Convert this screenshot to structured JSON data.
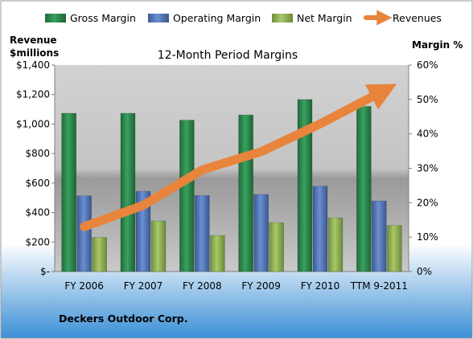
{
  "chart_data": {
    "type": "bar",
    "title": "12-Month Period Margins",
    "footer": "Deckers Outdoor Corp.",
    "left_axis": {
      "label_lines": [
        "Revenue",
        "$millions"
      ],
      "range": [
        0,
        1400
      ],
      "ticks": [
        "$-",
        "$200",
        "$400",
        "$600",
        "$800",
        "$1,000",
        "$1,200",
        "$1,400"
      ]
    },
    "right_axis": {
      "label": "Margin %",
      "range": [
        0,
        60
      ],
      "ticks": [
        "0%",
        "10%",
        "20%",
        "30%",
        "40%",
        "50%",
        "60%"
      ]
    },
    "categories": [
      "FY 2006",
      "FY 2007",
      "FY 2008",
      "FY 2009",
      "FY 2010",
      "TTM 9-2011"
    ],
    "series": [
      {
        "name": "Gross Margin",
        "axis": "right",
        "kind": "bar",
        "color": "#2E8B4E",
        "values": [
          46,
          46,
          44,
          45.5,
          50,
          48
        ]
      },
      {
        "name": "Operating Margin",
        "axis": "right",
        "kind": "bar",
        "color": "#4F73B5",
        "values": [
          22,
          23.3,
          22.1,
          22.4,
          24.8,
          20.5
        ]
      },
      {
        "name": "Net Margin",
        "axis": "right",
        "kind": "bar",
        "color": "#8FB254",
        "values": [
          9.9,
          14.7,
          10.5,
          14.2,
          15.6,
          13.4
        ]
      },
      {
        "name": "Revenues",
        "axis": "left",
        "kind": "line",
        "color": "#E8843C",
        "values": [
          304,
          449,
          689,
          813,
          1001,
          1210
        ]
      }
    ],
    "legend_position": "top"
  }
}
